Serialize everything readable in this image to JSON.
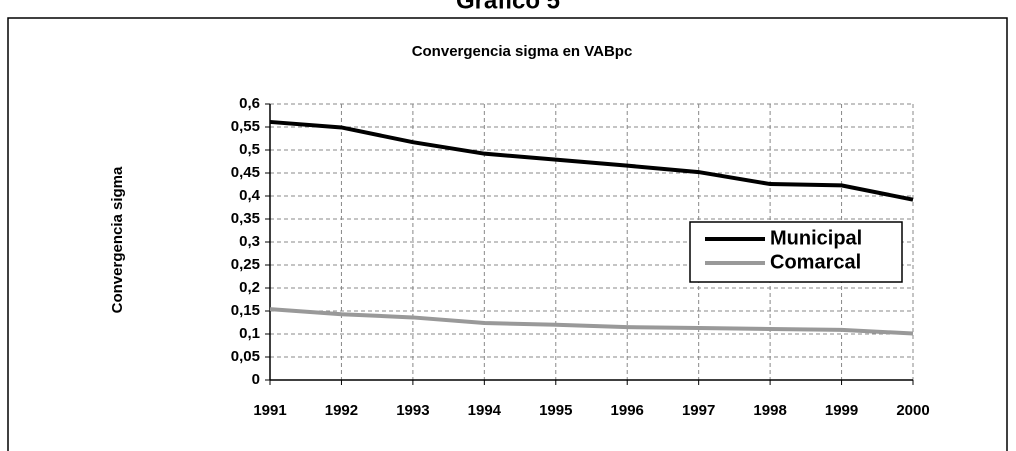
{
  "page_title": "Gráfico 5",
  "chart_data": {
    "type": "line",
    "title": "Convergencia sigma en VABpc",
    "ylabel": "Convergencia sigma",
    "x": [
      1991,
      1992,
      1993,
      1994,
      1995,
      1996,
      1997,
      1998,
      1999,
      2000
    ],
    "xlim": [
      1991,
      2000
    ],
    "xticks": [
      1991,
      1992,
      1993,
      1994,
      1995,
      1996,
      1997,
      1998,
      1999,
      2000
    ],
    "ylim": [
      0,
      0.6
    ],
    "yticks": [
      0,
      {
        "value": 0.05,
        "label": "0,05"
      },
      {
        "value": 0.1,
        "label": "0,1"
      },
      {
        "value": 0.15,
        "label": "0,15"
      },
      {
        "value": 0.2,
        "label": "0,2"
      },
      {
        "value": 0.25,
        "label": "0,25"
      },
      {
        "value": 0.3,
        "label": "0,3"
      },
      {
        "value": 0.35,
        "label": "0,35"
      },
      {
        "value": 0.4,
        "label": "0,4"
      },
      {
        "value": 0.45,
        "label": "0,45"
      },
      {
        "value": 0.5,
        "label": "0,5"
      },
      {
        "value": 0.55,
        "label": "0,55"
      },
      {
        "value": 0.6,
        "label": "0,6"
      }
    ],
    "grid": true,
    "legend": "right",
    "series": [
      {
        "name": "Municipal",
        "color": "#000000",
        "values": [
          0.561,
          0.549,
          0.517,
          0.492,
          0.479,
          0.466,
          0.452,
          0.426,
          0.423,
          0.392
        ]
      },
      {
        "name": "Comarcal",
        "color": "#999999",
        "values": [
          0.154,
          0.143,
          0.136,
          0.124,
          0.12,
          0.115,
          0.113,
          0.111,
          0.109,
          0.101
        ]
      }
    ]
  }
}
